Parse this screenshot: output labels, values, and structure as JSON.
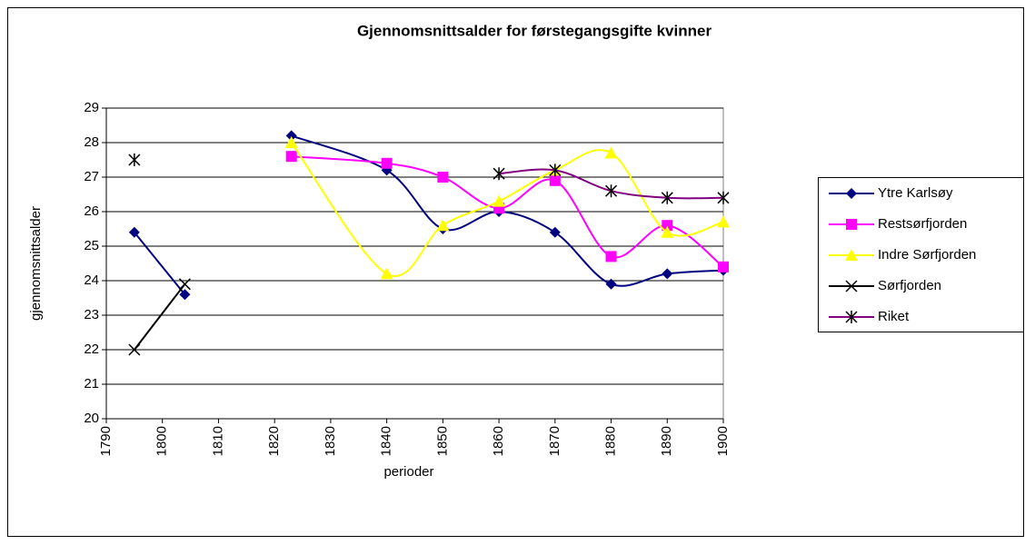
{
  "chart_data": {
    "type": "line",
    "title": "Gjennomsnittsalder for førstegangsgifte kvinner",
    "x_label": "perioder",
    "y_label": "gjennomsnittsalder",
    "x": [
      1795,
      1804,
      null,
      1823,
      1840,
      1850,
      1860,
      1870,
      1880,
      1890,
      1900
    ],
    "xlim": [
      1790,
      1900
    ],
    "xticks": [
      1790,
      1800,
      1810,
      1820,
      1830,
      1840,
      1850,
      1860,
      1870,
      1880,
      1890,
      1900
    ],
    "ylim": [
      20,
      29
    ],
    "yticks": [
      20,
      21,
      22,
      23,
      24,
      25,
      26,
      27,
      28,
      29
    ],
    "grid": true,
    "legend": "right",
    "series": [
      {
        "name": "Ytre Karlsøy",
        "color": "#000080",
        "marker": "diamond",
        "values": [
          25.4,
          23.6,
          null,
          28.2,
          27.2,
          25.5,
          26.0,
          25.4,
          23.9,
          24.2,
          24.3
        ]
      },
      {
        "name": "Restsørfjorden",
        "color": "#ff00ff",
        "marker": "square",
        "values": [
          null,
          null,
          null,
          27.6,
          27.4,
          27.0,
          26.1,
          26.9,
          24.7,
          25.6,
          24.4
        ]
      },
      {
        "name": "Indre Sørfjorden",
        "color": "#ffff00",
        "marker": "triangle",
        "values": [
          null,
          null,
          null,
          28.0,
          24.2,
          25.6,
          26.3,
          27.2,
          27.7,
          25.4,
          25.7
        ]
      },
      {
        "name": "Sørfjorden",
        "color": "#000000",
        "marker": "x",
        "values": [
          22.0,
          23.9,
          null,
          null,
          null,
          null,
          null,
          null,
          null,
          null,
          null
        ]
      },
      {
        "name": "Riket",
        "color": "#800080",
        "marker": "star",
        "values": [
          27.5,
          null,
          null,
          null,
          null,
          null,
          27.1,
          27.2,
          26.6,
          26.4,
          26.4
        ]
      }
    ]
  }
}
